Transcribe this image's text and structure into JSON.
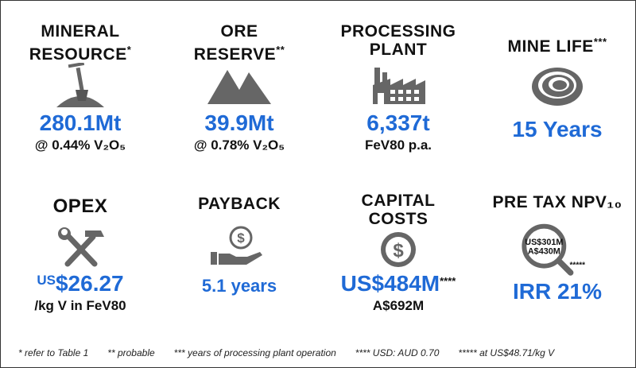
{
  "tiles": [
    {
      "title": [
        "MINERAL",
        "RESOURCE"
      ],
      "marker": "*",
      "value": "280.1Mt",
      "sub": "@ 0.44% V₂O₅"
    },
    {
      "title": [
        "ORE",
        "RESERVE"
      ],
      "marker": "**",
      "value": "39.9Mt",
      "sub": "@ 0.78% V₂O₅"
    },
    {
      "title": [
        "PROCESSING",
        "PLANT"
      ],
      "value": "6,337t",
      "sub": "FeV80 p.a."
    },
    {
      "title": [
        "MINE LIFE"
      ],
      "marker": "***",
      "value": "15 Years"
    },
    {
      "title": [
        "OPEX"
      ],
      "value_prefix": "US",
      "value": "$26.27",
      "sub": "/kg V in FeV80"
    },
    {
      "title": [
        "PAYBACK"
      ],
      "value": "5.1 years"
    },
    {
      "title": [
        "CAPITAL",
        "COSTS"
      ],
      "value": "US$484M",
      "marker": "****",
      "sub": "A$692M"
    },
    {
      "title": [
        "PRE TAX NPV₁₀"
      ],
      "icon_text": [
        "US$301M",
        "A$430M"
      ],
      "marker": "*****",
      "value": "IRR 21%"
    }
  ],
  "footnotes": [
    "* refer to Table 1",
    "** probable",
    "*** years of processing plant operation",
    "**** USD: AUD 0.70",
    "***** at US$48.71/kg V"
  ]
}
